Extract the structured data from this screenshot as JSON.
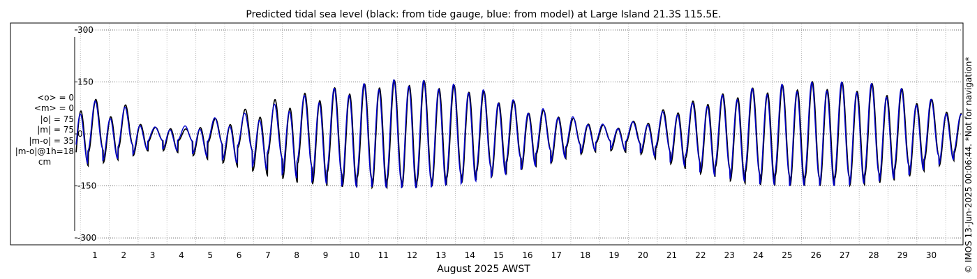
{
  "chart_data": {
    "type": "line",
    "title": "Predicted tidal sea level (black: from tide gauge, blue: from model) at Large Island 21.3S 115.5E.",
    "xlabel": "August 2025 AWST",
    "ylabel": "",
    "xlim": [
      0.3,
      31.1
    ],
    "ylim": [
      -320,
      320
    ],
    "xticks": [
      1,
      2,
      3,
      4,
      5,
      6,
      7,
      8,
      9,
      10,
      11,
      12,
      13,
      14,
      15,
      16,
      17,
      18,
      19,
      20,
      21,
      22,
      23,
      24,
      25,
      26,
      27,
      28,
      29,
      30
    ],
    "xtick_labels": [
      "1",
      "2",
      "3",
      "4",
      "5",
      "6",
      "7",
      "8",
      "9",
      "10",
      "11",
      "12",
      "13",
      "14",
      "15",
      "16",
      "17",
      "18",
      "19",
      "20",
      "21",
      "22",
      "23",
      "24",
      "25",
      "26",
      "27",
      "28",
      "29",
      "30"
    ],
    "yticks": [
      -300,
      -150,
      0,
      150,
      300
    ],
    "ytick_labels": [
      "-300",
      "-150",
      "0",
      "150",
      "300"
    ],
    "grid": true,
    "units": "cm",
    "series": [
      {
        "name": "tide gauge",
        "color": "#000000",
        "days": [
          0.35,
          1,
          2,
          3,
          4,
          5,
          6,
          7,
          8,
          9,
          10,
          11,
          12,
          13,
          14,
          15,
          16,
          17,
          18,
          19,
          20,
          21,
          22,
          23,
          24,
          25,
          26,
          27,
          28,
          29,
          30,
          31.05
        ],
        "high": [
          120,
          100,
          88,
          20,
          10,
          40,
          65,
          95,
          112,
          130,
          140,
          152,
          158,
          145,
          135,
          112,
          80,
          60,
          35,
          20,
          45,
          80,
          100,
          120,
          135,
          142,
          152,
          148,
          145,
          130,
          100,
          60
        ],
        "low": [
          -100,
          -88,
          -72,
          -45,
          -55,
          -75,
          -95,
          -120,
          -140,
          -150,
          -155,
          -155,
          -155,
          -150,
          -138,
          -120,
          -100,
          -80,
          -55,
          -48,
          -60,
          -88,
          -115,
          -135,
          -148,
          -150,
          -150,
          -150,
          -145,
          -130,
          -100,
          -70
        ],
        "high2": [
          70,
          55,
          45,
          15,
          15,
          20,
          30,
          55,
          80,
          100,
          118,
          135,
          140,
          130,
          120,
          90,
          60,
          50,
          30,
          15,
          25,
          55,
          80,
          100,
          115,
          125,
          130,
          125,
          120,
          100,
          75,
          50
        ],
        "low2": [
          -60,
          -50,
          -40,
          -20,
          -20,
          -25,
          -40,
          -60,
          -85,
          -110,
          -125,
          -135,
          -140,
          -130,
          -115,
          -90,
          -65,
          -45,
          -30,
          -20,
          -30,
          -55,
          -85,
          -105,
          -118,
          -125,
          -130,
          -128,
          -120,
          -100,
          -70,
          -50
        ]
      },
      {
        "name": "model",
        "color": "#0000cc",
        "days": [
          0.35,
          1,
          2,
          3,
          4,
          5,
          6,
          7,
          8,
          9,
          10,
          11,
          12,
          13,
          14,
          15,
          16,
          17,
          18,
          19,
          20,
          21,
          22,
          23,
          24,
          25,
          26,
          27,
          28,
          29,
          30,
          31.05
        ],
        "high": [
          115,
          95,
          80,
          20,
          20,
          45,
          55,
          80,
          105,
          128,
          140,
          155,
          158,
          148,
          138,
          115,
          82,
          65,
          38,
          22,
          42,
          75,
          95,
          118,
          135,
          145,
          150,
          150,
          145,
          130,
          100,
          55
        ],
        "low": [
          -90,
          -80,
          -68,
          -40,
          -50,
          -68,
          -85,
          -105,
          -128,
          -145,
          -152,
          -155,
          -158,
          -152,
          -140,
          -122,
          -98,
          -78,
          -50,
          -42,
          -55,
          -82,
          -110,
          -130,
          -145,
          -150,
          -150,
          -150,
          -140,
          -125,
          -98,
          -65
        ],
        "high2": [
          60,
          50,
          40,
          12,
          12,
          15,
          25,
          45,
          72,
          95,
          115,
          130,
          138,
          128,
          118,
          88,
          60,
          48,
          28,
          14,
          22,
          50,
          75,
          95,
          110,
          120,
          126,
          122,
          115,
          95,
          70,
          45
        ],
        "low2": [
          -55,
          -45,
          -35,
          -18,
          -18,
          -22,
          -35,
          -55,
          -78,
          -105,
          -120,
          -132,
          -138,
          -128,
          -112,
          -88,
          -62,
          -42,
          -28,
          -18,
          -28,
          -50,
          -80,
          -100,
          -112,
          -120,
          -126,
          -124,
          -116,
          -96,
          -66,
          -46
        ]
      }
    ]
  },
  "stats": {
    "mean_obs": "<o> = 0",
    "mean_model": "<m> = 0",
    "abs_obs": "|o| = 75",
    "abs_model": "|m| = 75",
    "abs_diff": "|m-o| = 35",
    "abs_diff_1h": "|m-o|@1h=18",
    "unit": "cm"
  },
  "copyright": "© IMOS 13-Jun-2025 00:06:44. *Not for navigation*"
}
